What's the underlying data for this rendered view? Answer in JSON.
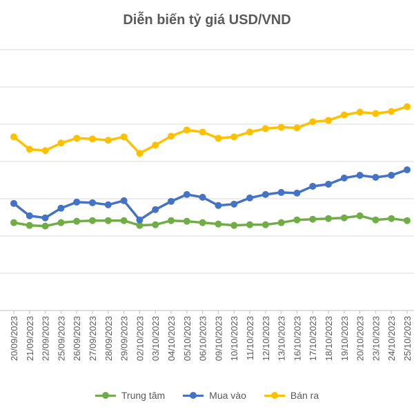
{
  "chart_data": {
    "type": "line",
    "title": "Diễn biến tỷ giá USD/VND",
    "categories": [
      "20/09/2023",
      "21/09/2023",
      "22/09/2023",
      "25/09/2023",
      "26/09/2023",
      "27/09/2023",
      "28/09/2023",
      "29/09/2023",
      "02/10/2023",
      "03/10/2023",
      "04/10/2023",
      "05/10/2023",
      "06/10/2023",
      "09/10/2023",
      "10/10/2023",
      "11/10/2023",
      "12/10/2023",
      "13/10/2023",
      "16/10/2023",
      "17/10/2023",
      "18/10/2023",
      "19/10/2023",
      "20/10/2023",
      "23/10/2023",
      "24/10/2023",
      "25/10/2023"
    ],
    "ylim": [
      0,
      380
    ],
    "grid": true,
    "legend_position": "bottom",
    "series": [
      {
        "name": "Trung tâm",
        "color": "#70AD47",
        "values": [
          128,
          124,
          123,
          128,
          130,
          131,
          131,
          131,
          124,
          125,
          131,
          130,
          128,
          126,
          124,
          125,
          125,
          128,
          132,
          133,
          134,
          135,
          138,
          132,
          134,
          131
        ]
      },
      {
        "name": "Mua vào",
        "color": "#4472C4",
        "values": [
          156,
          138,
          135,
          149,
          158,
          157,
          154,
          160,
          132,
          147,
          159,
          169,
          165,
          153,
          155,
          164,
          169,
          172,
          171,
          181,
          184,
          193,
          197,
          194,
          197,
          205
        ]
      },
      {
        "name": "Bán ra",
        "color": "#FFC000",
        "values": [
          253,
          235,
          233,
          244,
          251,
          250,
          248,
          253,
          229,
          241,
          254,
          263,
          260,
          251,
          253,
          260,
          265,
          267,
          266,
          275,
          277,
          285,
          289,
          287,
          290,
          297
        ]
      }
    ]
  }
}
